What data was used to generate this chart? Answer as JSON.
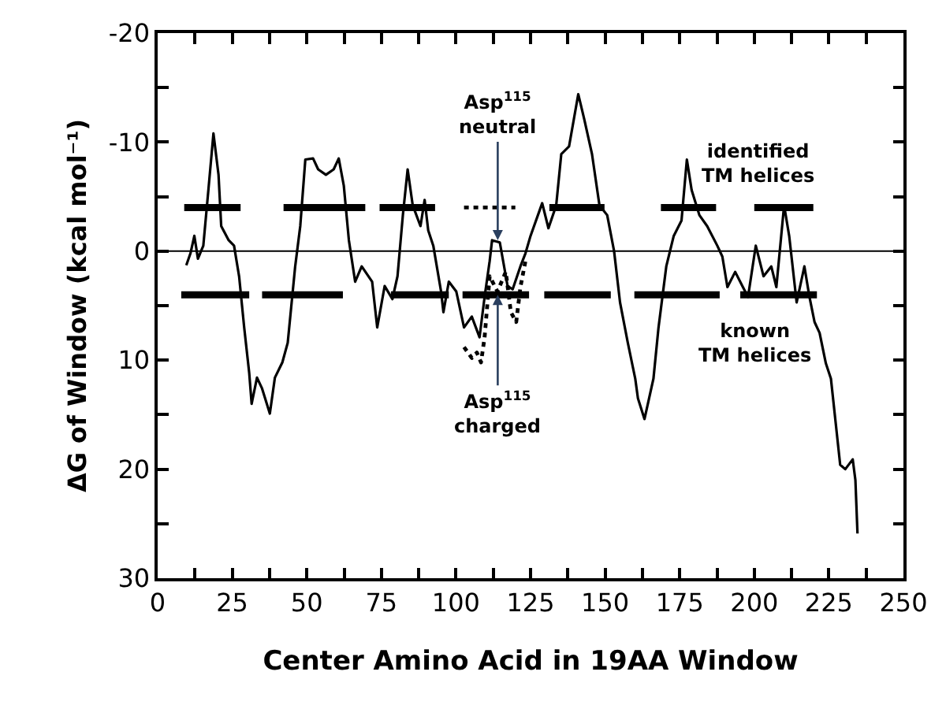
{
  "chart_data": {
    "type": "line",
    "xlabel": "Center Amino Acid in 19AA Window",
    "ylabel": "ΔG of Window (kcal mol⁻¹)",
    "xlim": [
      0,
      250
    ],
    "xticks": [
      0,
      {
        "value": 12.5,
        "label": null
      },
      25,
      {
        "value": 37.5,
        "label": null
      },
      50,
      {
        "value": 62.5,
        "label": null
      },
      75,
      {
        "value": 87.5,
        "label": null
      },
      100,
      {
        "value": 112.5,
        "label": null
      },
      125,
      {
        "value": 137.5,
        "label": null
      },
      150,
      {
        "value": 162.5,
        "label": null
      },
      175,
      {
        "value": 187.5,
        "label": null
      },
      200,
      {
        "value": 212.5,
        "label": null
      },
      225,
      {
        "value": 237.5,
        "label": null
      },
      250
    ],
    "ylim": [
      30,
      -20
    ],
    "yticks": [
      -20,
      {
        "value": -15,
        "label": null
      },
      -10,
      {
        "value": -5,
        "label": null
      },
      0,
      {
        "value": 5,
        "label": null
      },
      10,
      {
        "value": 15,
        "label": null
      },
      20,
      {
        "value": 25,
        "label": null
      },
      30
    ],
    "grid": false,
    "legend": false,
    "marker": "none",
    "series": [
      {
        "color": "#000000",
        "line_style": "solid",
        "x": [
          9.6,
          11,
          12.3,
          13.5,
          15.3,
          17,
          18.7,
          20.4,
          21.3,
          23.8,
          25.6,
          27.3,
          29,
          30.7,
          31.5,
          33.3,
          35,
          37.6,
          39.3,
          41.8,
          43.6,
          46.1,
          47.8,
          49.5,
          52.1,
          53.8,
          56.4,
          59,
          60.7,
          62.4,
          64.1,
          66.2,
          68.4,
          71.9,
          73.6,
          76.1,
          78.7,
          80.4,
          82.2,
          83.8,
          85.5,
          88.1,
          89.5,
          90.7,
          92.4,
          95,
          95.8,
          97.6,
          100.1,
          102.7,
          105.3,
          107.9,
          109.6,
          111.3,
          112.1,
          114.7,
          117.3,
          119,
          121.6,
          123.3,
          125,
          128.9,
          131,
          133.6,
          135.3,
          137.9,
          141,
          143,
          145.6,
          148.1,
          150.7,
          153,
          155,
          157.6,
          160.1,
          161,
          163.2,
          166.2,
          167.9,
          170.5,
          173,
          175.6,
          177.4,
          179,
          181.6,
          184.2,
          187.6,
          189.3,
          191,
          193.6,
          196.2,
          197.9,
          200.5,
          203.1,
          205.7,
          207.4,
          210,
          211.7,
          214.2,
          216.8,
          218.5,
          220.2,
          221.9,
          224,
          225.7,
          228.8,
          230.5,
          233,
          233.9,
          234.6
        ],
        "values": [
          1.3,
          0.2,
          -1.4,
          0.7,
          -0.5,
          -5.6,
          -10.8,
          -7,
          -2.3,
          -1,
          -0.5,
          2.3,
          7,
          11.2,
          14,
          11.6,
          12.6,
          14.9,
          11.6,
          10.2,
          8.4,
          1.4,
          -2.3,
          -8.4,
          -8.5,
          -7.5,
          -7,
          -7.5,
          -8.5,
          -6,
          -1,
          2.8,
          1.4,
          2.8,
          7,
          3.2,
          4.4,
          2.3,
          -3.3,
          -7.5,
          -4.2,
          -2.3,
          -4.7,
          -1.9,
          -0.5,
          3.7,
          5.6,
          2.8,
          3.7,
          7,
          6,
          7.9,
          4.2,
          0.9,
          -1,
          -0.8,
          3.2,
          3.5,
          1.4,
          0.2,
          -1.4,
          -4.4,
          -2.1,
          -4.2,
          -8.9,
          -9.6,
          -14.4,
          -12.1,
          -8.9,
          -4.2,
          -3.3,
          0,
          4.7,
          8.4,
          11.7,
          13.5,
          15.4,
          11.7,
          7,
          1.4,
          -1.4,
          -2.8,
          -8.4,
          -5.6,
          -3.3,
          -2.3,
          -0.5,
          0.5,
          3.3,
          1.9,
          3.3,
          4.2,
          -0.5,
          2.3,
          1.4,
          3.3,
          -4.2,
          -1.4,
          4.7,
          1.4,
          4.2,
          6.5,
          7.5,
          10.3,
          11.7,
          19.6,
          20,
          19.1,
          21,
          25.9
        ]
      },
      {
        "color": "#000000",
        "line_style": "dotted",
        "x": [
          102.7,
          105.3,
          107,
          108.4,
          109.6,
          111.3,
          113.9,
          116.7,
          118.4,
          120.2,
          121.6,
          123.3,
          null,
          102.7,
          119.9
        ],
        "values": [
          8.8,
          9.8,
          9.3,
          10.2,
          7.9,
          2.3,
          3.7,
          1.9,
          5.6,
          6.5,
          3.3,
          0.9,
          null,
          -4,
          -4
        ]
      },
      {
        "name": "identified\nTM helices",
        "color": "#000000",
        "line_style": "solid",
        "x": [
          8.9,
          27.8,
          null,
          42.2,
          69.6,
          null,
          74.4,
          93,
          null,
          131.3,
          149.8,
          null,
          168.7,
          187.2,
          null,
          200,
          219.8
        ],
        "values": [
          -4,
          -4,
          null,
          -4,
          -4,
          null,
          -4,
          -4,
          null,
          -4,
          -4,
          null,
          -4,
          -4,
          null,
          -4,
          -4
        ]
      },
      {
        "name": "known\nTM helices",
        "color": "#000000",
        "line_style": "solid",
        "x": [
          7.9,
          30.7,
          null,
          35,
          62.1,
          null,
          78.2,
          97.6,
          null,
          102.2,
          124.5,
          null,
          129.6,
          151.9,
          null,
          159.8,
          188.4,
          null,
          195.3,
          221
        ],
        "values": [
          4,
          4,
          null,
          4,
          4,
          null,
          4,
          4,
          null,
          4,
          4,
          null,
          4,
          4,
          null,
          4,
          4,
          null,
          4,
          4
        ]
      }
    ],
    "ref_lines": [
      {
        "axis": "y",
        "value": 0,
        "color": "#000000",
        "line_style": "solid"
      }
    ],
    "annotations": [
      {
        "text": "Asp$^{115}$\nneutral",
        "x": 114,
        "y": -1
      },
      {
        "text": "Asp$^{115}$\ncharged",
        "x": 114,
        "y": 4
      }
    ]
  }
}
